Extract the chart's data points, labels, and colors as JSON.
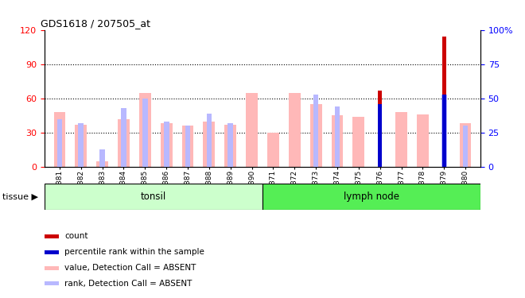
{
  "title": "GDS1618 / 207505_at",
  "samples": [
    "GSM51381",
    "GSM51382",
    "GSM51383",
    "GSM51384",
    "GSM51385",
    "GSM51386",
    "GSM51387",
    "GSM51388",
    "GSM51389",
    "GSM51390",
    "GSM51371",
    "GSM51372",
    "GSM51373",
    "GSM51374",
    "GSM51375",
    "GSM51376",
    "GSM51377",
    "GSM51378",
    "GSM51379",
    "GSM51380"
  ],
  "value_absent": [
    48,
    37,
    5,
    42,
    65,
    38,
    36,
    40,
    37,
    65,
    30,
    65,
    55,
    45,
    44,
    0,
    48,
    46,
    0,
    38
  ],
  "rank_absent": [
    35,
    32,
    13,
    43,
    50,
    33,
    30,
    39,
    32,
    0,
    0,
    0,
    53,
    44,
    0,
    0,
    0,
    0,
    53,
    30
  ],
  "count_bar": [
    0,
    0,
    0,
    0,
    0,
    0,
    0,
    0,
    0,
    0,
    0,
    0,
    0,
    0,
    0,
    67,
    0,
    0,
    114,
    0
  ],
  "count_bar_blue": [
    0,
    0,
    0,
    0,
    0,
    0,
    0,
    0,
    0,
    0,
    0,
    0,
    0,
    0,
    0,
    46,
    0,
    0,
    53,
    0
  ],
  "color_value_absent": "#ffb8b8",
  "color_rank_absent": "#b8b8ff",
  "color_count": "#cc0000",
  "color_count_blue": "#0000cc",
  "color_tonsil": "#ccffcc",
  "color_lymph": "#55ee55",
  "ylim_left": [
    0,
    120
  ],
  "ylim_right": [
    0,
    100
  ],
  "yticks_left": [
    0,
    30,
    60,
    90,
    120
  ],
  "yticks_right": [
    0,
    25,
    50,
    75,
    100
  ],
  "bar_width": 0.55,
  "rank_bar_width": 0.25
}
